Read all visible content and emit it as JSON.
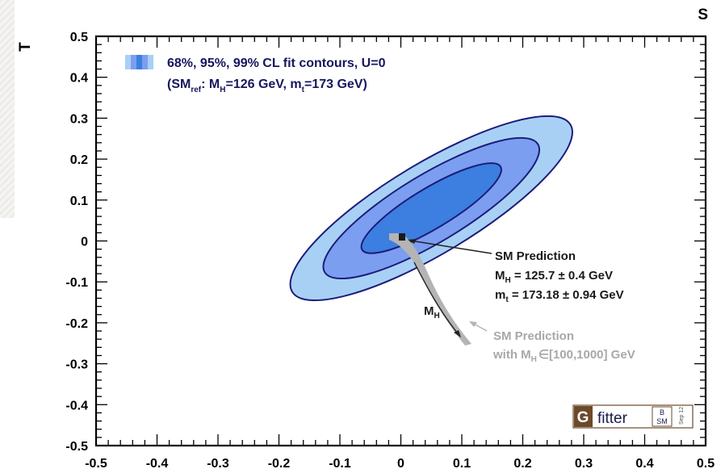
{
  "chart_data": {
    "type": "contour",
    "xlabel": "S",
    "ylabel": "T",
    "xlim": [
      -0.5,
      0.5
    ],
    "ylim": [
      -0.5,
      0.5
    ],
    "x_ticks": [
      "-0.5",
      "-0.4",
      "-0.3",
      "-0.2",
      "-0.1",
      "0",
      "0.1",
      "0.2",
      "0.3",
      "0.4",
      "0.5"
    ],
    "y_ticks": [
      "0.5",
      "0.4",
      "0.3",
      "0.2",
      "0.1",
      "0",
      "-0.1",
      "-0.2",
      "-0.3",
      "-0.4",
      "-0.5"
    ],
    "grid": false,
    "legend": {
      "placement": "top-left",
      "line1": "68%, 95%, 99% CL fit contours, U=0",
      "line2_pre": "(SM",
      "line2_sub1": "ref",
      "line2_mid1": ": M",
      "line2_sub2": "H",
      "line2_mid2": "=126 GeV, m",
      "line2_sub3": "t",
      "line2_post": "=173 GeV)"
    },
    "contours": [
      {
        "cl": "99%",
        "center": [
          0.05,
          0.08
        ],
        "color": "#a8d0f5"
      },
      {
        "cl": "95%",
        "center": [
          0.05,
          0.08
        ],
        "color": "#7b9ef0"
      },
      {
        "cl": "68%",
        "center": [
          0.05,
          0.08
        ],
        "color": "#3c7fe0"
      }
    ],
    "sm_point": {
      "S": 0.0,
      "T": 0.0
    },
    "sm_band": {
      "mh_range": [
        100,
        1000
      ],
      "color": "#b4b4b4"
    },
    "annotations": {
      "sm_title": "SM Prediction",
      "mh_line": {
        "pre": "M",
        "sub": "H",
        "post": " = 125.7 ± 0.4 GeV"
      },
      "mt_line": {
        "pre": "m",
        "sub": "t",
        "post": " = 173.18 ± 0.94 GeV"
      },
      "mh_arrow_label": {
        "pre": "M",
        "sub": "H"
      },
      "sm_band_title": "SM Prediction",
      "sm_band_line": {
        "pre": "with M",
        "sub": "H",
        "post": "∈[100,1000] GeV"
      }
    },
    "logo": {
      "g": "G",
      "word": "fitter",
      "sup": "B",
      "sub": "SM",
      "tag": "Sep 12"
    }
  }
}
